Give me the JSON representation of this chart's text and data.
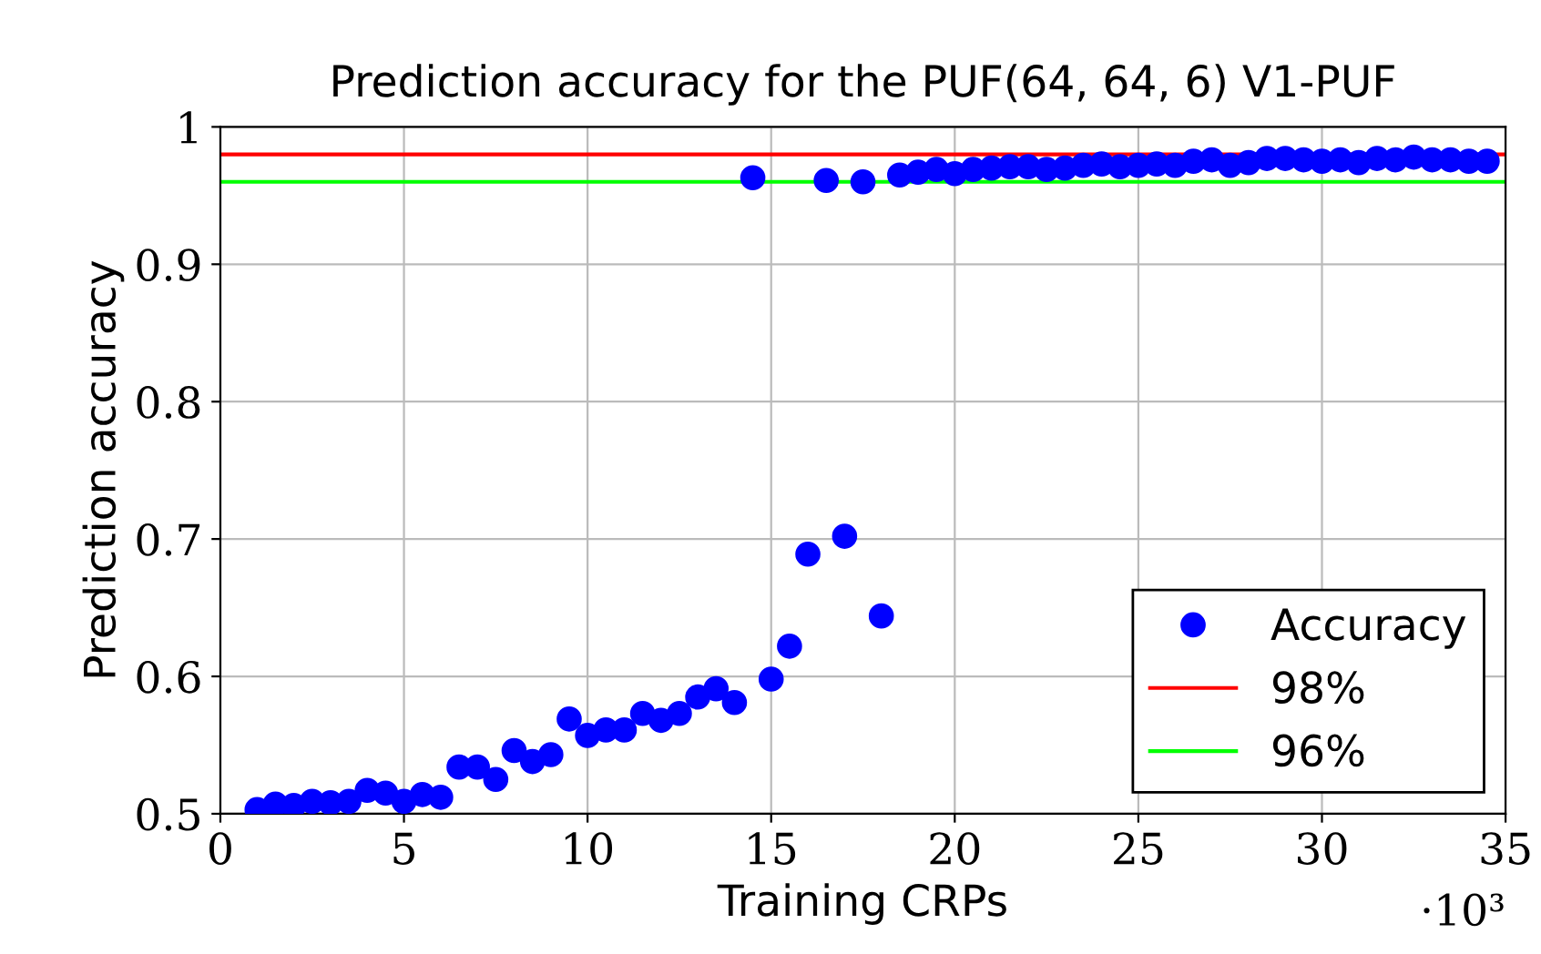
{
  "chart_data": {
    "type": "scatter",
    "title": "Prediction accuracy for the PUF(64, 64, 6) V1-PUF",
    "xlabel": "Training CRPs",
    "ylabel": "Prediction accuracy",
    "annotations": [
      "·10³"
    ],
    "x": [
      1,
      1.5,
      2,
      2.5,
      3,
      3.5,
      4,
      4.5,
      5,
      5.5,
      6,
      6.5,
      7,
      7.5,
      8,
      8.5,
      9,
      9.5,
      10,
      10.5,
      11,
      11.5,
      12,
      12.5,
      13,
      13.5,
      14,
      14.5,
      15,
      15.5,
      16,
      16.5,
      17,
      17.5,
      18,
      18.5,
      19,
      19.5,
      20,
      20.5,
      21,
      21.5,
      22,
      22.5,
      23,
      23.5,
      24,
      24.5,
      25,
      25.5,
      26,
      26.5,
      27,
      27.5,
      28,
      28.5,
      29,
      29.5,
      30,
      30.5,
      31,
      31.5,
      32,
      32.5,
      33,
      33.5,
      34,
      34.5
    ],
    "series": [
      {
        "name": "Accuracy",
        "color": "#0000ff",
        "marker": "circle",
        "values": [
          0.503,
          0.507,
          0.506,
          0.509,
          0.508,
          0.509,
          0.517,
          0.515,
          0.509,
          0.514,
          0.512,
          0.534,
          0.534,
          0.525,
          0.546,
          0.538,
          0.543,
          0.569,
          0.557,
          0.561,
          0.561,
          0.573,
          0.568,
          0.573,
          0.585,
          0.591,
          0.581,
          0.963,
          0.598,
          0.622,
          0.689,
          0.961,
          0.702,
          0.96,
          0.644,
          0.965,
          0.967,
          0.969,
          0.966,
          0.969,
          0.97,
          0.971,
          0.971,
          0.969,
          0.97,
          0.972,
          0.973,
          0.971,
          0.972,
          0.973,
          0.972,
          0.975,
          0.976,
          0.972,
          0.974,
          0.977,
          0.977,
          0.976,
          0.975,
          0.976,
          0.974,
          0.977,
          0.976,
          0.978,
          0.976,
          0.976,
          0.975,
          0.975
        ]
      }
    ],
    "ref_lines": [
      {
        "axis": "y",
        "value": 0.98,
        "label": "98%",
        "color": "#ff0000"
      },
      {
        "axis": "y",
        "value": 0.96,
        "label": "96%",
        "color": "#00ff00"
      }
    ],
    "xlim": [
      0,
      35
    ],
    "xticks": [
      0,
      5,
      10,
      15,
      20,
      25,
      30,
      35
    ],
    "ylim": [
      0.5,
      1
    ],
    "yticks": [
      0.5,
      0.6,
      0.7,
      0.8,
      0.9,
      1
    ],
    "grid": true,
    "legend": "bottom right"
  }
}
